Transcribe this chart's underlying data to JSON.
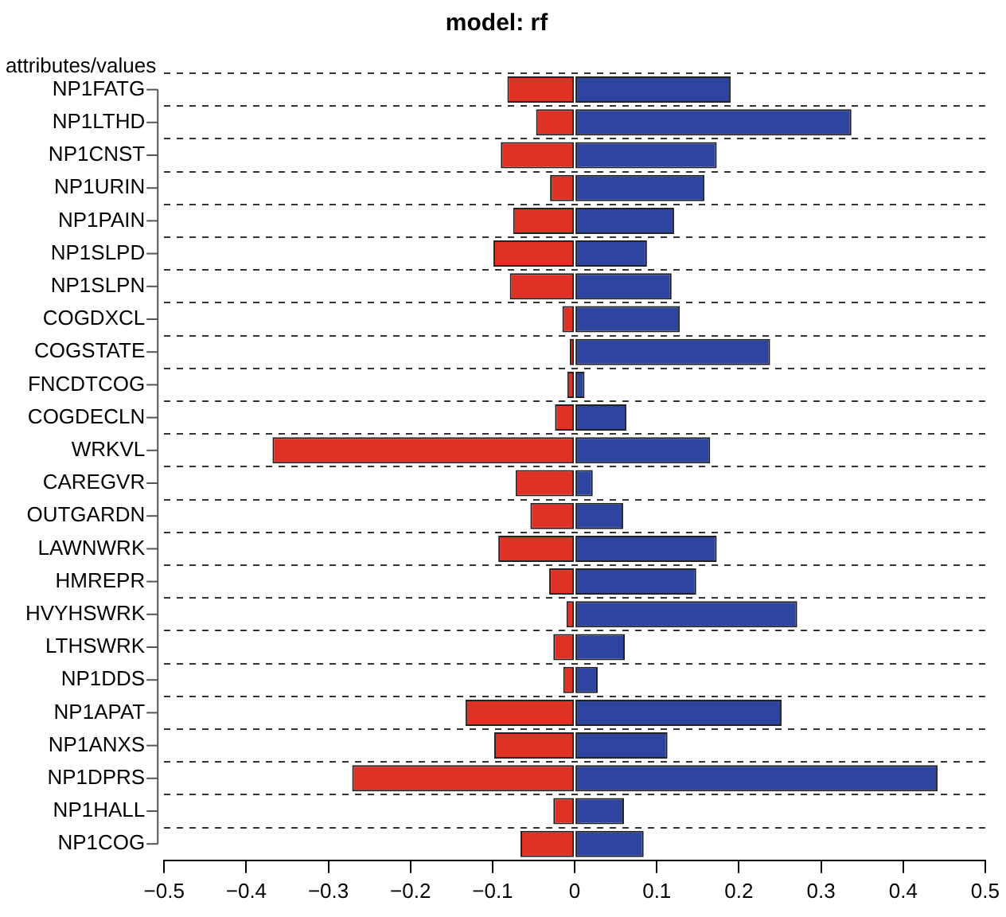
{
  "chart_data": {
    "type": "bar",
    "orientation": "horizontal",
    "stacked": true,
    "title": "model: rf",
    "ylabel": "attributes/values",
    "categories": [
      "NP1FATG",
      "NP1LTHD",
      "NP1CNST",
      "NP1URIN",
      "NP1PAIN",
      "NP1SLPD",
      "NP1SLPN",
      "COGDXCL",
      "COGSTATE",
      "FNCDTCOG",
      "COGDECLN",
      "WRKVL",
      "CAREGVR",
      "OUTGARDN",
      "LAWNWRK",
      "HMREPR",
      "HVYHSWRK",
      "LTHSWRK",
      "NP1DDS",
      "NP1APAT",
      "NP1ANXS",
      "NP1DPRS",
      "NP1HALL",
      "NP1COG"
    ],
    "series": [
      {
        "color": "#e03127",
        "values": [
          -0.082,
          -0.047,
          -0.09,
          -0.03,
          -0.075,
          -0.099,
          -0.079,
          -0.015,
          -0.006,
          -0.009,
          -0.024,
          -0.368,
          -0.072,
          -0.054,
          -0.093,
          -0.031,
          -0.01,
          -0.026,
          -0.014,
          -0.133,
          -0.098,
          -0.271,
          -0.026,
          -0.066
        ]
      },
      {
        "color": "#2e45a0",
        "values": [
          0.19,
          0.337,
          0.173,
          0.158,
          0.121,
          0.088,
          0.118,
          0.128,
          0.238,
          0.012,
          0.063,
          0.165,
          0.022,
          0.059,
          0.173,
          0.148,
          0.271,
          0.061,
          0.028,
          0.252,
          0.113,
          0.442,
          0.06,
          0.084
        ]
      }
    ],
    "xlim": [
      -0.5,
      0.5
    ],
    "xticks": [
      {
        "value": -0.5,
        "label": "−0.5"
      },
      {
        "value": -0.4,
        "label": "−0.4"
      },
      {
        "value": -0.3,
        "label": "−0.3"
      },
      {
        "value": -0.2,
        "label": "−0.2"
      },
      {
        "value": -0.1,
        "label": "−0.1"
      },
      0,
      0.1,
      0.2,
      0.3,
      0.4,
      0.5
    ],
    "grid": "y",
    "legend": false
  }
}
